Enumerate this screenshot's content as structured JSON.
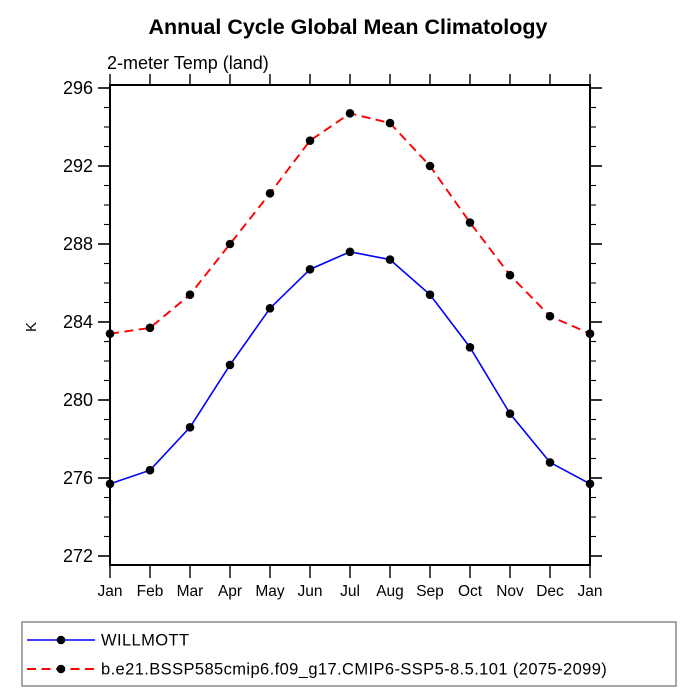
{
  "title": "Annual Cycle Global Mean Climatology",
  "subtitle": "2-meter Temp (land)",
  "chart_data": {
    "type": "line",
    "categories": [
      "Jan",
      "Feb",
      "Mar",
      "Apr",
      "May",
      "Jun",
      "Jul",
      "Aug",
      "Sep",
      "Oct",
      "Nov",
      "Dec",
      "Jan"
    ],
    "xlabel": "",
    "ylabel": "K",
    "ylim": [
      272,
      296
    ],
    "yticks": [
      272,
      276,
      280,
      284,
      288,
      292,
      296
    ],
    "minor_tick_step": 1,
    "grid": false,
    "legend_position": "bottom-left",
    "axis_color": "#000000",
    "series": [
      {
        "name": "WILLMOTT",
        "color": "#0000ff",
        "line_style": "solid",
        "marker": "filled-circle",
        "marker_color": "#000000",
        "values": [
          275.7,
          276.4,
          278.6,
          281.8,
          284.7,
          286.7,
          287.6,
          287.2,
          285.4,
          282.7,
          279.3,
          276.8,
          275.7
        ]
      },
      {
        "name": "b.e21.BSSP585cmip6.f09_g17.CMIP6-SSP5-8.5.101 (2075-2099)",
        "color": "#ff0000",
        "line_style": "dashed",
        "marker": "filled-circle",
        "marker_color": "#000000",
        "values": [
          283.4,
          283.7,
          285.4,
          288.0,
          290.6,
          293.3,
          294.7,
          294.2,
          292.0,
          289.1,
          286.4,
          284.3,
          283.4
        ]
      }
    ]
  }
}
